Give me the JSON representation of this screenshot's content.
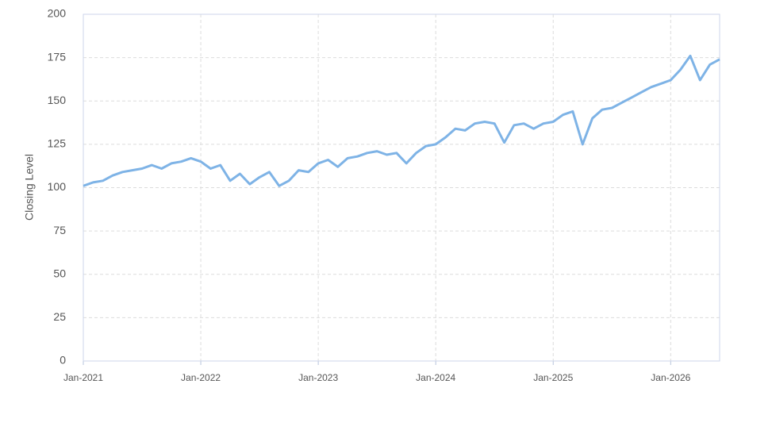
{
  "chart_data": {
    "type": "line",
    "y_label": "Closing Level",
    "x": [
      "2021-01",
      "2021-02",
      "2021-03",
      "2021-04",
      "2021-05",
      "2021-06",
      "2021-07",
      "2021-08",
      "2021-09",
      "2021-10",
      "2021-11",
      "2021-12",
      "2022-01",
      "2022-02",
      "2022-03",
      "2022-04",
      "2022-05",
      "2022-06",
      "2022-07",
      "2022-08",
      "2022-09",
      "2022-10",
      "2022-11",
      "2022-12",
      "2023-01",
      "2023-02",
      "2023-03",
      "2023-04",
      "2023-05",
      "2023-06",
      "2023-07",
      "2023-08",
      "2023-09",
      "2023-10",
      "2023-11",
      "2023-12",
      "2024-01",
      "2024-02",
      "2024-03",
      "2024-04",
      "2024-05",
      "2024-06",
      "2024-07",
      "2024-08",
      "2024-09",
      "2024-10",
      "2024-11",
      "2024-12",
      "2025-01",
      "2025-02",
      "2025-03",
      "2025-04",
      "2025-05",
      "2025-06",
      "2025-07",
      "2025-08",
      "2025-09",
      "2025-10",
      "2025-11",
      "2025-12",
      "2026-01",
      "2026-02",
      "2026-03",
      "2026-04",
      "2026-05",
      "2026-06"
    ],
    "series": [
      {
        "name": "Closing Level",
        "color": "#7eb3e6",
        "values": [
          101,
          103,
          104,
          107,
          109,
          110,
          111,
          113,
          111,
          114,
          115,
          117,
          115,
          111,
          113,
          104,
          108,
          102,
          106,
          109,
          101,
          104,
          110,
          109,
          114,
          116,
          112,
          117,
          118,
          120,
          121,
          119,
          120,
          114,
          120,
          124,
          125,
          129,
          134,
          133,
          137,
          138,
          137,
          126,
          136,
          137,
          134,
          137,
          138,
          142,
          144,
          125,
          140,
          145,
          146,
          149,
          152,
          155,
          158,
          160,
          162,
          168,
          176,
          162,
          171,
          174
        ]
      }
    ],
    "xlim": [
      "2021-01",
      "2026-06"
    ],
    "xticks": [
      {
        "value": "2021-01",
        "label": "Jan-2021"
      },
      {
        "value": "2022-01",
        "label": "Jan-2022"
      },
      {
        "value": "2023-01",
        "label": "Jan-2023"
      },
      {
        "value": "2024-01",
        "label": "Jan-2024"
      },
      {
        "value": "2025-01",
        "label": "Jan-2025"
      },
      {
        "value": "2026-01",
        "label": "Jan-2026"
      }
    ],
    "ylim": [
      0,
      200
    ],
    "yticks": [
      0,
      25,
      50,
      75,
      100,
      125,
      150,
      175,
      200
    ],
    "grid": true
  }
}
